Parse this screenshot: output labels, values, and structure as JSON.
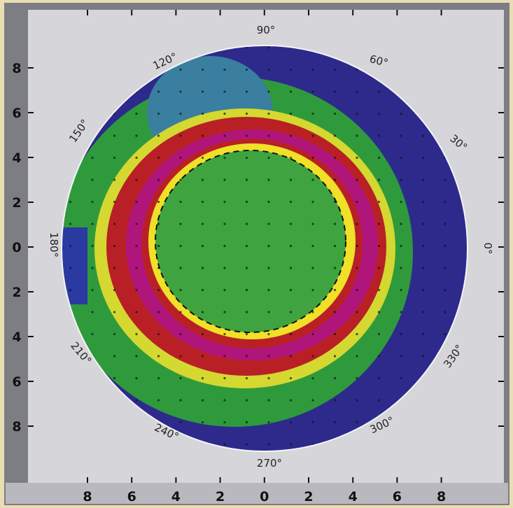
{
  "y_axis": {
    "ticks": [
      "8",
      "6",
      "4",
      "2",
      "0",
      "2",
      "4",
      "6",
      "8"
    ]
  },
  "x_axis": {
    "ticks": [
      "8",
      "6",
      "4",
      "2",
      "0",
      "2",
      "4",
      "6",
      "8"
    ]
  },
  "angle_labels": [
    "90°",
    "60°",
    "30°",
    "0°",
    "330°",
    "300°",
    "270°",
    "240°",
    "210°",
    "180°",
    "150°",
    "120°"
  ]
}
